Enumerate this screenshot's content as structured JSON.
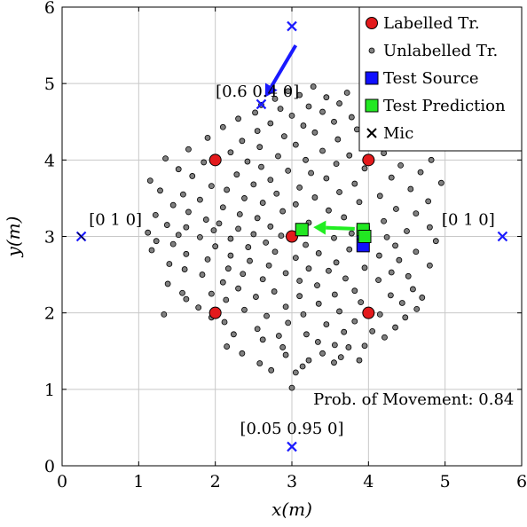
{
  "chart_data": {
    "type": "scatter",
    "xlabel": "x(m)",
    "ylabel": "y(m)",
    "xlim": [
      0,
      6
    ],
    "ylim": [
      0,
      6
    ],
    "grid": true,
    "xticks": [
      "0",
      "1",
      "2",
      "3",
      "4",
      "5",
      "6"
    ],
    "yticks": [
      "0",
      "1",
      "2",
      "3",
      "4",
      "5",
      "6"
    ],
    "legend": {
      "position": "top-right",
      "entries": [
        {
          "label": "Labelled Tr.",
          "marker": "circle",
          "color": "#e31a1c"
        },
        {
          "label": "Unlabelled Tr.",
          "marker": "small-circle",
          "color": "#808080"
        },
        {
          "label": "Test Source",
          "marker": "square",
          "color": "#1010ff"
        },
        {
          "label": "Test Prediction",
          "marker": "square",
          "color": "#22e822"
        },
        {
          "label": "Mic",
          "marker": "cross",
          "color": "#000000"
        }
      ]
    },
    "series": [
      {
        "name": "Labelled Tr.",
        "color": "#e31a1c",
        "points": [
          [
            2,
            4
          ],
          [
            4,
            4
          ],
          [
            3,
            3
          ],
          [
            2,
            2
          ],
          [
            4,
            2
          ]
        ]
      },
      {
        "name": "Test Source",
        "color": "#1010ff",
        "points": [
          [
            3.93,
            2.88
          ],
          [
            3.93,
            3.05
          ]
        ]
      },
      {
        "name": "Test Prediction",
        "color": "#22e822",
        "points": [
          [
            3.13,
            3.09
          ],
          [
            3.93,
            3.09
          ],
          [
            3.95,
            3.0
          ]
        ]
      },
      {
        "name": "Mic",
        "color": "#1a1aff",
        "points": [
          [
            0.25,
            3.0
          ],
          [
            5.75,
            3.0
          ],
          [
            3.0,
            5.75
          ],
          [
            3.0,
            0.25
          ],
          [
            2.6,
            4.73
          ]
        ]
      },
      {
        "name": "Unlabelled Tr.",
        "color": "#808080",
        "points": [
          [
            3.0,
            1.02
          ],
          [
            3.05,
            1.22
          ],
          [
            2.73,
            1.25
          ],
          [
            3.14,
            1.3
          ],
          [
            2.58,
            1.34
          ],
          [
            3.55,
            1.35
          ],
          [
            3.22,
            1.38
          ],
          [
            3.88,
            1.38
          ],
          [
            3.64,
            1.42
          ],
          [
            2.92,
            1.45
          ],
          [
            3.4,
            1.47
          ],
          [
            2.35,
            1.47
          ],
          [
            2.88,
            1.55
          ],
          [
            3.74,
            1.55
          ],
          [
            2.15,
            1.56
          ],
          [
            3.56,
            1.58
          ],
          [
            3.95,
            1.57
          ],
          [
            3.34,
            1.62
          ],
          [
            2.62,
            1.65
          ],
          [
            4.21,
            1.68
          ],
          [
            2.83,
            1.7
          ],
          [
            3.19,
            1.72
          ],
          [
            2.24,
            1.72
          ],
          [
            3.68,
            1.75
          ],
          [
            4.05,
            1.76
          ],
          [
            2.55,
            1.79
          ],
          [
            4.35,
            1.81
          ],
          [
            3.45,
            1.85
          ],
          [
            2.95,
            1.87
          ],
          [
            2.12,
            1.88
          ],
          [
            3.82,
            1.89
          ],
          [
            4.48,
            1.94
          ],
          [
            1.95,
            1.94
          ],
          [
            2.67,
            1.96
          ],
          [
            3.15,
            1.98
          ],
          [
            4.15,
            1.98
          ],
          [
            1.33,
            1.98
          ],
          [
            3.62,
            2.02
          ],
          [
            2.38,
            2.04
          ],
          [
            4.63,
            2.05
          ],
          [
            1.78,
            2.07
          ],
          [
            2.92,
            2.08
          ],
          [
            3.35,
            2.12
          ],
          [
            4.44,
            2.13
          ],
          [
            3.9,
            2.14
          ],
          [
            2.14,
            2.17
          ],
          [
            1.62,
            2.18
          ],
          [
            4.7,
            2.2
          ],
          [
            2.53,
            2.21
          ],
          [
            3.1,
            2.22
          ],
          [
            4.29,
            2.23
          ],
          [
            3.56,
            2.24
          ],
          [
            1.95,
            2.25
          ],
          [
            1.57,
            2.26
          ],
          [
            2.77,
            2.28
          ],
          [
            3.82,
            2.29
          ],
          [
            2.3,
            2.32
          ],
          [
            4.58,
            2.31
          ],
          [
            3.33,
            2.36
          ],
          [
            1.38,
            2.38
          ],
          [
            2.1,
            2.4
          ],
          [
            3.1,
            2.42
          ],
          [
            4.13,
            2.43
          ],
          [
            2.62,
            2.44
          ],
          [
            3.7,
            2.45
          ],
          [
            1.83,
            2.5
          ],
          [
            4.52,
            2.48
          ],
          [
            2.36,
            2.51
          ],
          [
            2.92,
            2.52
          ],
          [
            4.3,
            2.53
          ],
          [
            3.48,
            2.55
          ],
          [
            1.6,
            2.57
          ],
          [
            2.17,
            2.58
          ],
          [
            3.22,
            2.58
          ],
          [
            3.95,
            2.59
          ],
          [
            2.7,
            2.62
          ],
          [
            4.8,
            2.62
          ],
          [
            1.4,
            2.64
          ],
          [
            3.58,
            2.66
          ],
          [
            2.45,
            2.68
          ],
          [
            4.4,
            2.69
          ],
          [
            1.9,
            2.7
          ],
          [
            3.05,
            2.72
          ],
          [
            2.2,
            2.75
          ],
          [
            4.14,
            2.75
          ],
          [
            1.62,
            2.77
          ],
          [
            3.35,
            2.78
          ],
          [
            2.78,
            2.8
          ],
          [
            4.62,
            2.8
          ],
          [
            1.17,
            2.82
          ],
          [
            3.75,
            2.83
          ],
          [
            2.43,
            2.86
          ],
          [
            2.0,
            2.87
          ],
          [
            4.35,
            2.88
          ],
          [
            3.18,
            2.89
          ],
          [
            1.45,
            2.9
          ],
          [
            2.66,
            2.92
          ],
          [
            1.23,
            2.94
          ],
          [
            4.88,
            2.94
          ],
          [
            2.2,
            2.97
          ],
          [
            3.55,
            2.98
          ],
          [
            1.8,
            2.99
          ],
          [
            4.24,
            2.99
          ],
          [
            2.86,
            3.01
          ],
          [
            1.52,
            3.02
          ],
          [
            2.5,
            3.03
          ],
          [
            3.78,
            3.04
          ],
          [
            1.12,
            3.05
          ],
          [
            1.98,
            3.08
          ],
          [
            4.5,
            3.07
          ],
          [
            2.3,
            3.1
          ],
          [
            3.4,
            3.11
          ],
          [
            1.62,
            3.12
          ],
          [
            2.72,
            3.13
          ],
          [
            4.8,
            3.12
          ],
          [
            1.37,
            3.15
          ],
          [
            2.05,
            3.17
          ],
          [
            3.22,
            3.18
          ],
          [
            4.2,
            3.2
          ],
          [
            1.88,
            3.22
          ],
          [
            2.55,
            3.24
          ],
          [
            3.68,
            3.25
          ],
          [
            1.22,
            3.28
          ],
          [
            2.32,
            3.29
          ],
          [
            4.62,
            3.3
          ],
          [
            1.65,
            3.32
          ],
          [
            2.88,
            3.33
          ],
          [
            3.48,
            3.34
          ],
          [
            4.36,
            3.36
          ],
          [
            2.1,
            3.38
          ],
          [
            1.45,
            3.41
          ],
          [
            3.05,
            3.42
          ],
          [
            2.62,
            3.44
          ],
          [
            3.88,
            3.45
          ],
          [
            4.78,
            3.46
          ],
          [
            1.8,
            3.48
          ],
          [
            2.38,
            3.5
          ],
          [
            3.3,
            3.51
          ],
          [
            4.15,
            3.53
          ],
          [
            1.58,
            3.55
          ],
          [
            2.8,
            3.56
          ],
          [
            3.62,
            3.58
          ],
          [
            1.28,
            3.6
          ],
          [
            2.15,
            3.61
          ],
          [
            4.55,
            3.62
          ],
          [
            3.1,
            3.64
          ],
          [
            1.95,
            3.66
          ],
          [
            2.5,
            3.68
          ],
          [
            3.82,
            3.69
          ],
          [
            4.95,
            3.7
          ],
          [
            1.15,
            3.73
          ],
          [
            2.72,
            3.74
          ],
          [
            3.45,
            3.76
          ],
          [
            4.3,
            3.77
          ],
          [
            1.7,
            3.79
          ],
          [
            2.28,
            3.81
          ],
          [
            3.25,
            3.83
          ],
          [
            4.68,
            3.84
          ],
          [
            2.95,
            3.86
          ],
          [
            1.52,
            3.88
          ],
          [
            3.95,
            3.89
          ],
          [
            2.6,
            3.91
          ],
          [
            4.42,
            3.93
          ],
          [
            3.58,
            3.95
          ],
          [
            1.85,
            3.97
          ],
          [
            2.42,
            3.98
          ],
          [
            3.18,
            4.0
          ],
          [
            4.82,
            4.0
          ],
          [
            1.35,
            4.02
          ],
          [
            2.82,
            4.05
          ],
          [
            3.75,
            4.06
          ],
          [
            4.2,
            4.09
          ],
          [
            2.2,
            4.1
          ],
          [
            3.4,
            4.12
          ],
          [
            1.65,
            4.14
          ],
          [
            2.58,
            4.17
          ],
          [
            3.98,
            4.18
          ],
          [
            3.05,
            4.2
          ],
          [
            4.55,
            4.22
          ],
          [
            2.35,
            4.25
          ],
          [
            3.6,
            4.27
          ],
          [
            1.9,
            4.29
          ],
          [
            2.9,
            4.31
          ],
          [
            4.1,
            4.33
          ],
          [
            3.3,
            4.36
          ],
          [
            2.55,
            4.38
          ],
          [
            3.85,
            4.4
          ],
          [
            2.1,
            4.43
          ],
          [
            3.15,
            4.45
          ],
          [
            4.35,
            4.46
          ],
          [
            2.72,
            4.48
          ],
          [
            3.55,
            4.5
          ],
          [
            2.3,
            4.54
          ],
          [
            3.78,
            4.56
          ],
          [
            3.0,
            4.58
          ],
          [
            2.52,
            4.62
          ],
          [
            3.4,
            4.63
          ],
          [
            4.05,
            4.62
          ],
          [
            2.85,
            4.67
          ],
          [
            3.22,
            4.7
          ],
          [
            2.6,
            4.72
          ],
          [
            3.62,
            4.74
          ],
          [
            3.95,
            4.76
          ],
          [
            2.78,
            4.8
          ],
          [
            3.45,
            4.82
          ],
          [
            3.1,
            4.85
          ],
          [
            2.95,
            4.9
          ],
          [
            3.72,
            4.88
          ],
          [
            2.7,
            4.93
          ],
          [
            3.28,
            4.96
          ]
        ]
      }
    ],
    "arrows": [
      {
        "from": [
          3.05,
          5.5
        ],
        "to": [
          2.65,
          4.82
        ],
        "color": "#1a1aff"
      },
      {
        "from": [
          3.82,
          3.1
        ],
        "to": [
          3.28,
          3.12
        ],
        "color": "#22ee22"
      }
    ],
    "annotations": [
      {
        "text": "[0.6 0.4 0]",
        "at": [
          2.55,
          4.83
        ]
      },
      {
        "text": "[0 1 0]",
        "at": [
          0.35,
          3.15
        ],
        "anchor": "start"
      },
      {
        "text": "[0 1 0]",
        "at": [
          5.65,
          3.15
        ],
        "anchor": "end"
      },
      {
        "text": "[0.05 0.95 0]",
        "at": [
          3.0,
          0.42
        ]
      },
      {
        "text": "Prob. of Movement: 0.84",
        "at": [
          5.9,
          0.8
        ],
        "anchor": "end"
      }
    ]
  }
}
